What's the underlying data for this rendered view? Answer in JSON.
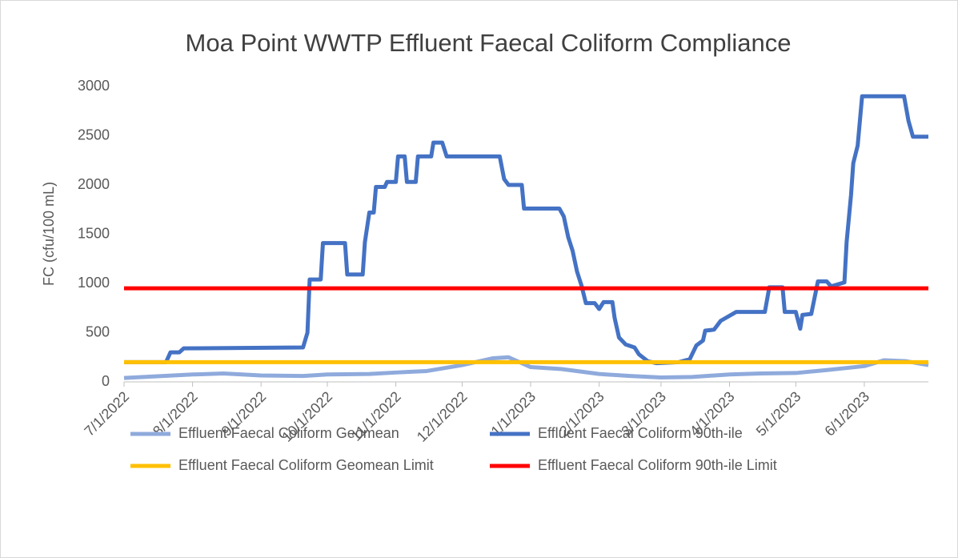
{
  "chart_data": {
    "type": "line",
    "title": "Moa Point WWTP Effluent Faecal Coliform Compliance",
    "ylabel": "FC (cfu/100 mL)",
    "xlim": [
      "2022-07-01",
      "2023-06-30"
    ],
    "xticks": [
      {
        "value": "2022-07-01",
        "label": "7/1/2022"
      },
      {
        "value": "2022-08-01",
        "label": "8/1/2022"
      },
      {
        "value": "2022-09-01",
        "label": "9/1/2022"
      },
      {
        "value": "2022-10-01",
        "label": "10/1/2022"
      },
      {
        "value": "2022-11-01",
        "label": "11/1/2022"
      },
      {
        "value": "2022-12-01",
        "label": "12/1/2022"
      },
      {
        "value": "2023-01-01",
        "label": "1/1/2023"
      },
      {
        "value": "2023-02-01",
        "label": "2/1/2023"
      },
      {
        "value": "2023-03-01",
        "label": "3/1/2023"
      },
      {
        "value": "2023-04-01",
        "label": "4/1/2023"
      },
      {
        "value": "2023-05-01",
        "label": "5/1/2023"
      },
      {
        "value": "2023-06-01",
        "label": "6/1/2023"
      }
    ],
    "ylim": [
      0,
      3000
    ],
    "yticks": [
      0,
      500,
      1000,
      1500,
      2000,
      2500,
      3000
    ],
    "grid": false,
    "legend": "bottom",
    "series": [
      {
        "name": "Effluent Faecal Coliform Geomean",
        "color": "#8faadc",
        "x": [
          "2022-07-01",
          "2022-08-01",
          "2022-08-15",
          "2022-09-01",
          "2022-09-20",
          "2022-10-01",
          "2022-10-20",
          "2022-11-01",
          "2022-11-15",
          "2022-12-01",
          "2022-12-15",
          "2022-12-22",
          "2023-01-01",
          "2023-01-15",
          "2023-02-01",
          "2023-02-15",
          "2023-03-01",
          "2023-03-15",
          "2023-04-01",
          "2023-04-15",
          "2023-05-01",
          "2023-05-15",
          "2023-06-01",
          "2023-06-10",
          "2023-06-20",
          "2023-06-30"
        ],
        "values": [
          40,
          75,
          85,
          65,
          60,
          75,
          80,
          95,
          110,
          170,
          240,
          250,
          150,
          130,
          80,
          60,
          45,
          50,
          75,
          85,
          90,
          120,
          160,
          220,
          210,
          170
        ]
      },
      {
        "name": "Effluent Faecal Coliform 90th-ile",
        "color": "#4472c4",
        "x": [
          "2022-07-01",
          "2022-07-20",
          "2022-07-22",
          "2022-07-26",
          "2022-07-28",
          "2022-09-20",
          "2022-09-22",
          "2022-09-23",
          "2022-09-28",
          "2022-09-29",
          "2022-10-09",
          "2022-10-10",
          "2022-10-17",
          "2022-10-18",
          "2022-10-20",
          "2022-10-22",
          "2022-10-23",
          "2022-10-27",
          "2022-10-28",
          "2022-11-01",
          "2022-11-02",
          "2022-11-05",
          "2022-11-06",
          "2022-11-10",
          "2022-11-11",
          "2022-11-17",
          "2022-11-18",
          "2022-11-22",
          "2022-11-24",
          "2022-12-18",
          "2022-12-20",
          "2022-12-22",
          "2022-12-28",
          "2022-12-29",
          "2023-01-14",
          "2023-01-16",
          "2023-01-18",
          "2023-01-20",
          "2023-01-22",
          "2023-01-24",
          "2023-01-26",
          "2023-01-30",
          "2023-02-01",
          "2023-02-03",
          "2023-02-07",
          "2023-02-08",
          "2023-02-10",
          "2023-02-13",
          "2023-02-17",
          "2023-02-19",
          "2023-02-23",
          "2023-02-27",
          "2023-03-09",
          "2023-03-14",
          "2023-03-17",
          "2023-03-20",
          "2023-03-21",
          "2023-03-25",
          "2023-03-28",
          "2023-04-04",
          "2023-04-17",
          "2023-04-19",
          "2023-04-25",
          "2023-04-26",
          "2023-05-01",
          "2023-05-03",
          "2023-05-04",
          "2023-05-08",
          "2023-05-11",
          "2023-05-15",
          "2023-05-17",
          "2023-05-23",
          "2023-05-24",
          "2023-05-26",
          "2023-05-27",
          "2023-05-29",
          "2023-05-31",
          "2023-06-19",
          "2023-06-21",
          "2023-06-23",
          "2023-06-30"
        ],
        "values": [
          200,
          200,
          300,
          300,
          340,
          350,
          500,
          1040,
          1040,
          1410,
          1410,
          1090,
          1090,
          1420,
          1720,
          1720,
          1980,
          1980,
          2030,
          2030,
          2290,
          2290,
          2030,
          2030,
          2290,
          2290,
          2430,
          2430,
          2290,
          2290,
          2060,
          2000,
          2000,
          1760,
          1760,
          1680,
          1470,
          1330,
          1120,
          980,
          800,
          800,
          740,
          810,
          810,
          650,
          450,
          380,
          350,
          280,
          210,
          190,
          200,
          230,
          370,
          420,
          520,
          530,
          620,
          710,
          710,
          960,
          960,
          710,
          710,
          540,
          680,
          690,
          1020,
          1020,
          970,
          1010,
          1420,
          1900,
          2220,
          2400,
          2900,
          2900,
          2650,
          2490,
          2490
        ]
      },
      {
        "name": "Effluent Faecal Coliform Geomean Limit",
        "color": "#ffc000",
        "x": [
          "2022-07-01",
          "2023-06-30"
        ],
        "values": [
          200,
          200
        ]
      },
      {
        "name": "Effluent Faecal Coliform 90th-ile Limit",
        "color": "#ff0000",
        "x": [
          "2022-07-01",
          "2023-06-30"
        ],
        "values": [
          950,
          950
        ]
      }
    ]
  }
}
